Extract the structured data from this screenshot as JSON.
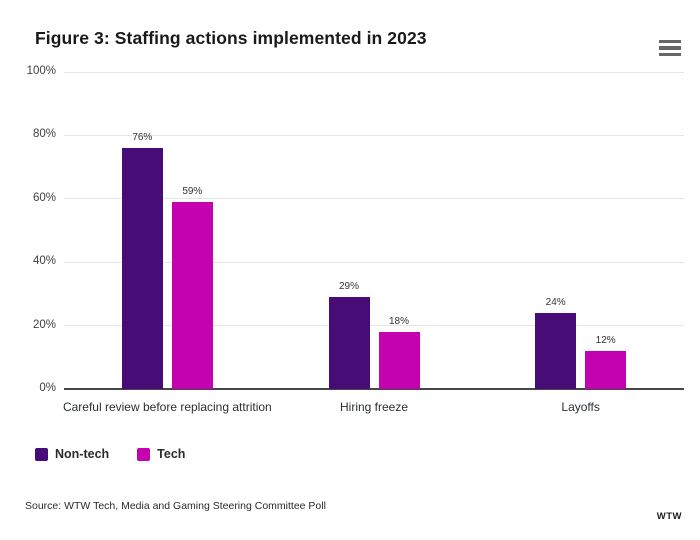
{
  "header": {
    "title": "Figure 3: Staffing actions implemented in 2023",
    "menu_icon": "hamburger-icon"
  },
  "chart_data": {
    "type": "bar",
    "title": "Figure 3: Staffing actions implemented in 2023",
    "categories": [
      "Careful review before replacing attrition",
      "Hiring freeze",
      "Layoffs"
    ],
    "series": [
      {
        "name": "Non-tech",
        "color": "#470c77",
        "values": [
          76,
          29,
          24
        ]
      },
      {
        "name": "Tech",
        "color": "#c502b0",
        "values": [
          59,
          18,
          12
        ]
      }
    ],
    "data_labels": [
      [
        "76%",
        "29%",
        "24%"
      ],
      [
        "59%",
        "18%",
        "12%"
      ]
    ],
    "ylabel": "",
    "xlabel": "",
    "ylim": [
      0,
      100
    ],
    "yticks": [
      {
        "value": 0,
        "label": "0%"
      },
      {
        "value": 20,
        "label": "20%"
      },
      {
        "value": 40,
        "label": "40%"
      },
      {
        "value": 60,
        "label": "60%"
      },
      {
        "value": 80,
        "label": "80%"
      },
      {
        "value": 100,
        "label": "100%"
      }
    ],
    "grid": true,
    "legend_position": "bottom-left"
  },
  "colors": {
    "non_tech": "#470c77",
    "tech": "#c502b0",
    "gridline": "#e6e6e6",
    "axis": "#474747"
  },
  "footer": {
    "source": "Source: WTW Tech, Media and Gaming Steering Committee Poll",
    "logo": "WTW"
  }
}
